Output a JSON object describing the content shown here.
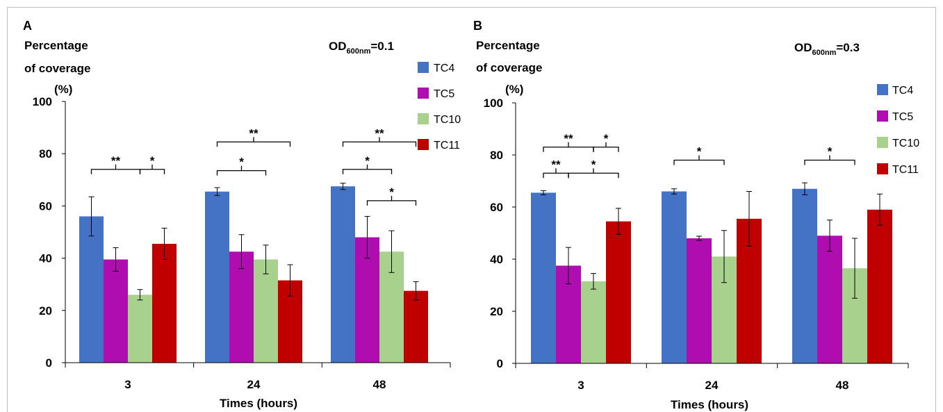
{
  "figure": {
    "border_color": "#bfbfbf",
    "axis_color": "#000000",
    "bracket_color": "#000000"
  },
  "chart_data": [
    {
      "type": "bar",
      "panel": "A",
      "ylabel_lines": [
        "Percentage",
        "of coverage",
        "(%)"
      ],
      "condition": {
        "prefix": "OD",
        "sub": "600nm",
        "suffix": "=0.1"
      },
      "xlabel": "Times (hours)",
      "categories": [
        "3",
        "24",
        "48"
      ],
      "ylim": [
        0,
        100
      ],
      "yticks": [
        "0",
        "20",
        "40",
        "60",
        "80",
        "100"
      ],
      "legend_position": "top-right",
      "series": [
        {
          "name": "TC4",
          "color": "#4472c4",
          "values": [
            56,
            65.5,
            67.5
          ],
          "errors": [
            7.5,
            1.5,
            1.2
          ]
        },
        {
          "name": "TC5",
          "color": "#b00db0",
          "values": [
            39.5,
            42.5,
            48
          ],
          "errors": [
            4.5,
            6.5,
            8
          ]
        },
        {
          "name": "TC10",
          "color": "#a9d18e",
          "values": [
            26,
            39.5,
            42.5
          ],
          "errors": [
            2,
            5.5,
            8
          ]
        },
        {
          "name": "TC11",
          "color": "#c00000",
          "values": [
            45.5,
            31.5,
            27.5
          ],
          "errors": [
            6,
            6,
            3.5
          ]
        }
      ],
      "significance": [
        {
          "cat": 0,
          "from": 0,
          "to": 2,
          "y": 74,
          "label": "**"
        },
        {
          "cat": 0,
          "from": 2,
          "to": 3,
          "y": 74,
          "label": "*"
        },
        {
          "cat": 1,
          "from": 0,
          "to": 3,
          "y": 84.5,
          "label": "**"
        },
        {
          "cat": 1,
          "from": 0,
          "to": 2,
          "y": 73.5,
          "label": "*"
        },
        {
          "cat": 2,
          "from": 0,
          "to": 3,
          "y": 84.5,
          "label": "**"
        },
        {
          "cat": 2,
          "from": 0,
          "to": 2,
          "y": 74,
          "label": "*"
        },
        {
          "cat": 2,
          "from": 1,
          "to": 3,
          "y": 62,
          "label": "*"
        }
      ]
    },
    {
      "type": "bar",
      "panel": "B",
      "ylabel_lines": [
        "Percentage",
        "of coverage",
        "(%)"
      ],
      "condition": {
        "prefix": "OD",
        "sub": "600nm",
        "suffix": "=0.3"
      },
      "xlabel": "Times (hours)",
      "categories": [
        "3",
        "24",
        "48"
      ],
      "ylim": [
        0,
        100
      ],
      "yticks": [
        "0",
        "20",
        "40",
        "60",
        "80",
        "100"
      ],
      "legend_position": "top-right",
      "series": [
        {
          "name": "TC4",
          "color": "#4472c4",
          "values": [
            65.5,
            66,
            67
          ],
          "errors": [
            0.8,
            1,
            2.3
          ]
        },
        {
          "name": "TC5",
          "color": "#b00db0",
          "values": [
            37.5,
            48,
            49
          ],
          "errors": [
            7,
            0.8,
            6
          ]
        },
        {
          "name": "TC10",
          "color": "#a9d18e",
          "values": [
            31.5,
            41,
            36.5
          ],
          "errors": [
            3,
            10,
            11.5
          ]
        },
        {
          "name": "TC11",
          "color": "#c00000",
          "values": [
            54.5,
            55.5,
            59
          ],
          "errors": [
            5,
            10.5,
            6
          ]
        }
      ],
      "significance": [
        {
          "cat": 0,
          "from": 0,
          "to": 2,
          "y": 83,
          "label": "**"
        },
        {
          "cat": 0,
          "from": 2,
          "to": 3,
          "y": 83,
          "label": "*"
        },
        {
          "cat": 0,
          "from": 0,
          "to": 1,
          "y": 73,
          "label": "**"
        },
        {
          "cat": 0,
          "from": 1,
          "to": 3,
          "y": 73,
          "label": "*"
        },
        {
          "cat": 1,
          "from": 0,
          "to": 2,
          "y": 78,
          "label": "*"
        },
        {
          "cat": 2,
          "from": 0,
          "to": 2,
          "y": 78,
          "label": "*"
        }
      ]
    }
  ]
}
